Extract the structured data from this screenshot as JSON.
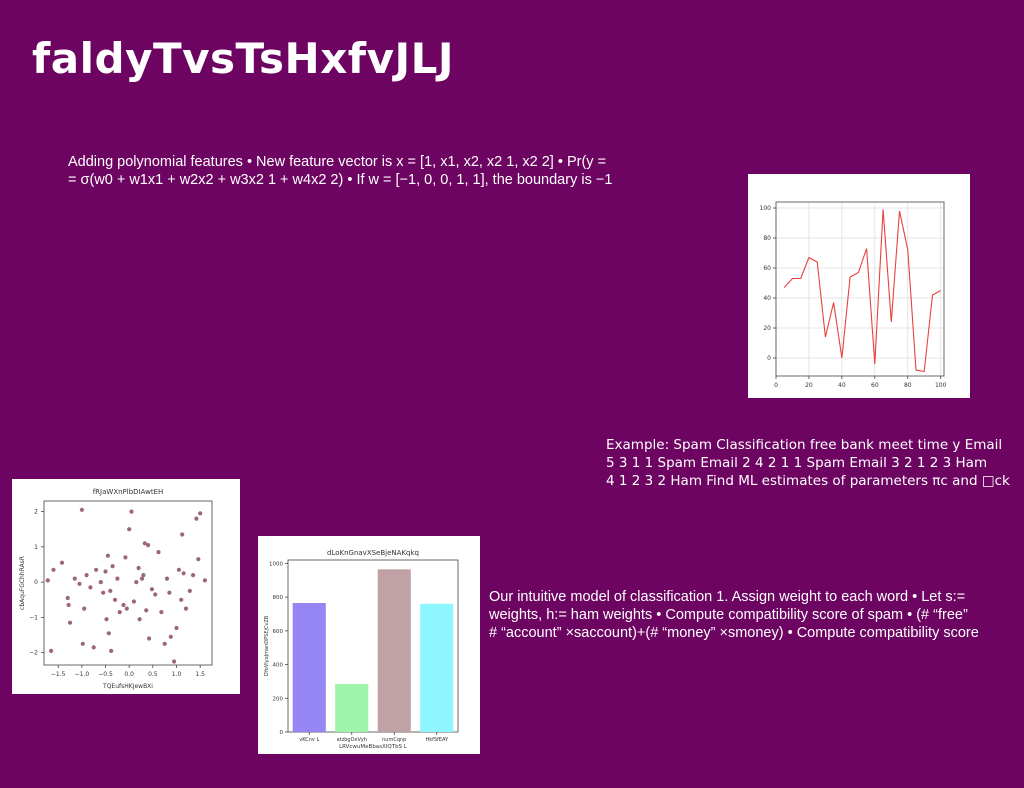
{
  "slide": {
    "title": "faldyTvsTsHxfvJLJ",
    "text1": [
      "Adding polynomial features • New feature vector is x = [1, x1, x2, x2 1, x2 2] • Pr(y =",
      "= σ(w0 + w1x1 + w2x2 + w3x2 1 + w4x2 2) • If w = [−1, 0, 0, 1, 1], the boundary is −1"
    ],
    "text2": [
      "Example: Spam Classification free bank meet time y Email",
      "5 3 1 1 Spam Email 2 4 2 1 1 Spam Email 3 2 1 2 3 Ham",
      "4 1 2 3 2 Ham Find ML estimates of parameters πc and □ck"
    ],
    "text3": [
      "Our intuitive model of classification 1. Assign weight to each word • Let s:=",
      "weights, h:= ham weights • Compute compatibility score of spam • (# “free”",
      "# “account” ×saccount)+(# “money” ×smoney) • Compute compatibility score"
    ]
  },
  "chart_data": [
    {
      "type": "line",
      "title": "",
      "xlabel": "",
      "ylabel": "",
      "x": [
        5,
        10,
        15,
        20,
        25,
        30,
        35,
        40,
        45,
        50,
        55,
        60,
        65,
        70,
        75,
        80,
        85,
        90,
        95,
        100
      ],
      "series": [
        {
          "values": [
            47,
            53,
            53,
            67,
            64,
            14,
            37,
            0,
            54,
            57,
            73,
            -4,
            99,
            24,
            98,
            72,
            -8,
            -9,
            42,
            45
          ],
          "color": "#e8413a"
        }
      ],
      "xlim": [
        0,
        102
      ],
      "ylim": [
        -12,
        104
      ],
      "xticks": [
        0,
        20,
        40,
        60,
        80,
        100
      ],
      "yticks": [
        0,
        20,
        40,
        60,
        80,
        100
      ],
      "grid": true
    },
    {
      "type": "scatter",
      "title": "fRJaWXnPlbDIAwtEH",
      "xlabel": "TQEufsHKJewBXi",
      "ylabel": "cbAquFGChhRAsR",
      "xticks": [
        -1.5,
        -1.0,
        -0.5,
        0.0,
        0.5,
        1.0,
        1.5
      ],
      "yticks": [
        -2,
        -1,
        0,
        1,
        2
      ],
      "xlim": [
        -1.8,
        1.75
      ],
      "ylim": [
        -2.35,
        2.3
      ],
      "color": "#9c6677",
      "points": [
        [
          -1.72,
          0.05
        ],
        [
          -1.65,
          -1.95
        ],
        [
          -1.6,
          0.35
        ],
        [
          -1.42,
          0.55
        ],
        [
          -1.3,
          -0.45
        ],
        [
          -1.28,
          -0.65
        ],
        [
          -1.25,
          -1.15
        ],
        [
          -1.15,
          0.1
        ],
        [
          -1.05,
          -0.05
        ],
        [
          -1.0,
          2.05
        ],
        [
          -0.98,
          -1.75
        ],
        [
          -0.95,
          -0.75
        ],
        [
          -0.9,
          0.2
        ],
        [
          -0.82,
          -0.15
        ],
        [
          -0.75,
          -1.85
        ],
        [
          -0.7,
          0.35
        ],
        [
          -0.6,
          0.0
        ],
        [
          -0.55,
          -0.3
        ],
        [
          -0.5,
          0.3
        ],
        [
          -0.48,
          -1.05
        ],
        [
          -0.45,
          0.75
        ],
        [
          -0.43,
          -1.45
        ],
        [
          -0.4,
          -0.25
        ],
        [
          -0.38,
          -1.95
        ],
        [
          -0.35,
          0.45
        ],
        [
          -0.3,
          -0.5
        ],
        [
          -0.25,
          0.1
        ],
        [
          -0.2,
          -0.85
        ],
        [
          -0.12,
          -0.65
        ],
        [
          -0.08,
          0.7
        ],
        [
          -0.05,
          -0.75
        ],
        [
          0.0,
          1.5
        ],
        [
          0.05,
          2.0
        ],
        [
          0.1,
          -0.55
        ],
        [
          0.15,
          0.0
        ],
        [
          0.2,
          0.4
        ],
        [
          0.22,
          -1.05
        ],
        [
          0.27,
          0.1
        ],
        [
          0.3,
          0.2
        ],
        [
          0.33,
          1.1
        ],
        [
          0.36,
          -0.8
        ],
        [
          0.4,
          1.05
        ],
        [
          0.42,
          -1.6
        ],
        [
          0.48,
          -0.2
        ],
        [
          0.55,
          -0.35
        ],
        [
          0.62,
          0.85
        ],
        [
          0.68,
          -0.85
        ],
        [
          0.75,
          -1.75
        ],
        [
          0.8,
          0.1
        ],
        [
          0.85,
          -0.3
        ],
        [
          0.88,
          -1.55
        ],
        [
          0.95,
          -2.25
        ],
        [
          1.0,
          -1.3
        ],
        [
          1.05,
          0.35
        ],
        [
          1.1,
          -0.5
        ],
        [
          1.12,
          1.35
        ],
        [
          1.15,
          0.25
        ],
        [
          1.2,
          -0.75
        ],
        [
          1.28,
          -0.25
        ],
        [
          1.35,
          0.2
        ],
        [
          1.42,
          1.8
        ],
        [
          1.46,
          0.65
        ],
        [
          1.5,
          1.95
        ],
        [
          1.6,
          0.05
        ]
      ]
    },
    {
      "type": "bar",
      "title": "dLoKnGnavXSeBjeNAKqkq",
      "xlabel": "LRVcwuMeBbasXIQTbS L",
      "ylabel": "DYoVlyoJmanDPSEjCvZB",
      "categories": [
        "vKCnv L",
        "atzbgOxVyh",
        "numCqnp",
        "HkfSfEAY"
      ],
      "values": [
        765,
        285,
        965,
        760
      ],
      "colors": [
        "#9686f4",
        "#9ef4a8",
        "#c0a2a6",
        "#8ef6ff"
      ],
      "ylim": [
        0,
        1020
      ],
      "yticks": [
        0,
        200,
        400,
        600,
        800,
        1000
      ]
    }
  ]
}
